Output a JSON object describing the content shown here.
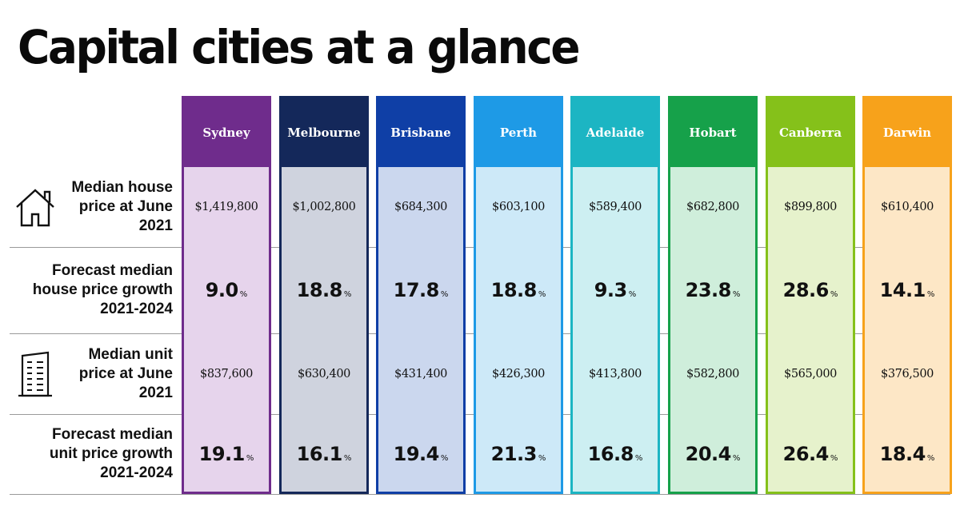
{
  "chart_data": {
    "type": "table",
    "title": "Capital cities at a glance",
    "columns": [
      {
        "name": "Sydney",
        "color": "#6f2c8c",
        "light": "#e6d4ec"
      },
      {
        "name": "Melbourne",
        "color": "#14285a",
        "light": "#cfd3de"
      },
      {
        "name": "Brisbane",
        "color": "#0f3fa6",
        "light": "#cbd7ee"
      },
      {
        "name": "Perth",
        "color": "#1e9ae6",
        "light": "#cde9f8"
      },
      {
        "name": "Adelaide",
        "color": "#1cb5c3",
        "light": "#cdeff2"
      },
      {
        "name": "Hobart",
        "color": "#16a14a",
        "light": "#cfeedb"
      },
      {
        "name": "Canberra",
        "color": "#85c11a",
        "light": "#e6f2cc"
      },
      {
        "name": "Darwin",
        "color": "#f7a21b",
        "light": "#fde7c6"
      }
    ],
    "rows": [
      {
        "label": "Median house price at June 2021",
        "kind": "price",
        "icon": "house-icon",
        "values": [
          "$1,419,800",
          "$1,002,800",
          "$684,300",
          "$603,100",
          "$589,400",
          "$682,800",
          "$899,800",
          "$610,400"
        ]
      },
      {
        "label": "Forecast median house price growth 2021-2024",
        "kind": "percent",
        "values": [
          9.0,
          18.8,
          17.8,
          18.8,
          9.3,
          23.8,
          28.6,
          14.1
        ]
      },
      {
        "label": "Median unit price at June 2021",
        "kind": "price",
        "icon": "apartment-building-icon",
        "values": [
          "$837,600",
          "$630,400",
          "$431,400",
          "$426,300",
          "$413,800",
          "$582,800",
          "$565,000",
          "$376,500"
        ]
      },
      {
        "label": "Forecast median unit price growth 2021-2024",
        "kind": "percent",
        "values": [
          19.1,
          16.1,
          19.4,
          21.3,
          16.8,
          20.4,
          26.4,
          18.4
        ]
      }
    ],
    "percent_sign": "%"
  }
}
